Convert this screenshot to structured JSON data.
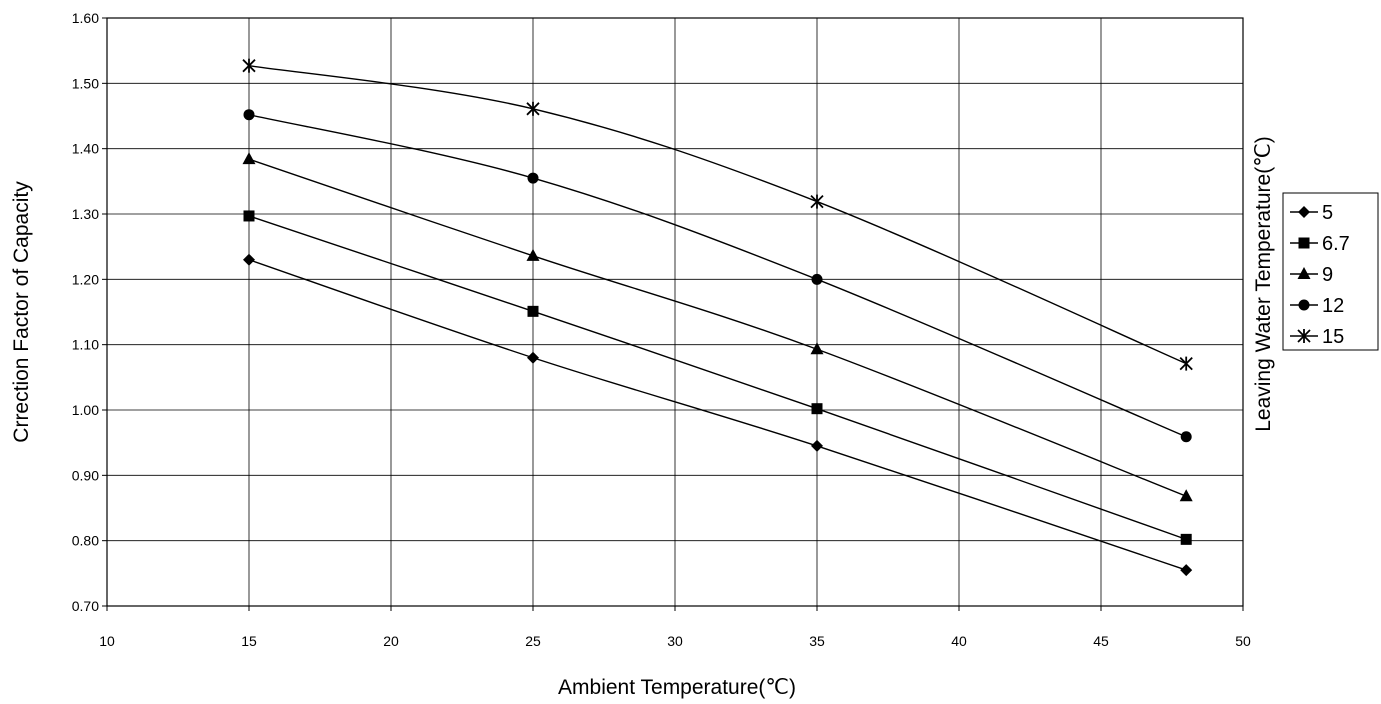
{
  "chart_data": {
    "type": "line",
    "xlabel": "Ambient Temperature(℃)",
    "ylabel": "Crrection Factor of Capacity",
    "legend_title": "Leaving Water Temperature(℃)",
    "xlim": [
      10,
      50
    ],
    "ylim": [
      0.7,
      1.6
    ],
    "x_ticks": [
      "10",
      "15",
      "20",
      "25",
      "30",
      "35",
      "40",
      "45",
      "50"
    ],
    "y_ticks": [
      "0.70",
      "0.80",
      "0.90",
      "1.00",
      "1.10",
      "1.20",
      "1.30",
      "1.40",
      "1.50",
      "1.60"
    ],
    "grid": true,
    "legend_position": "right",
    "x": [
      15,
      25,
      35,
      48
    ],
    "series": [
      {
        "name": "5",
        "marker": "diamond",
        "values": [
          1.23,
          1.08,
          0.945,
          0.755
        ]
      },
      {
        "name": "6.7",
        "marker": "square",
        "values": [
          1.297,
          1.151,
          1.002,
          0.802
        ]
      },
      {
        "name": "9",
        "marker": "triangle",
        "values": [
          1.384,
          1.236,
          1.093,
          0.868
        ]
      },
      {
        "name": "12",
        "marker": "circle",
        "values": [
          1.452,
          1.355,
          1.2,
          0.959
        ]
      },
      {
        "name": "15",
        "marker": "star",
        "values": [
          1.527,
          1.461,
          1.319,
          1.071
        ]
      }
    ],
    "colors": {
      "line": "#000000",
      "grid": "#000000",
      "background": "#ffffff"
    }
  }
}
